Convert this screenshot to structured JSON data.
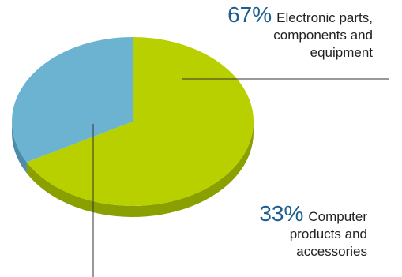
{
  "chart_data": {
    "type": "pie",
    "slices": [
      {
        "label": "Electronic parts, components and equipment",
        "value": 67,
        "value_text": "67%",
        "label_lines": [
          "Electronic parts,",
          "components and",
          "equipment"
        ],
        "color": "#b8cf00",
        "side_color": "#8aa000"
      },
      {
        "label": "Computer products and accessories",
        "value": 33,
        "value_text": "33%",
        "label_lines": [
          "Computer",
          "products and",
          "accessories"
        ],
        "color": "#6bb3d1",
        "side_color": "#4c8ca8"
      }
    ],
    "start_angle_deg": 90,
    "three_d": true,
    "leader_color": "#333333"
  }
}
